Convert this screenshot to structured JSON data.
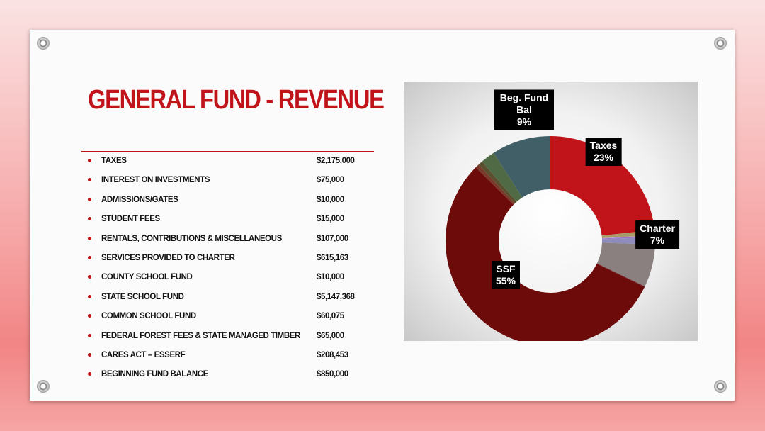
{
  "title": "GENERAL FUND - REVENUE",
  "items": [
    {
      "label": "TAXES",
      "amount": "$2,175,000"
    },
    {
      "label": "INTEREST ON INVESTMENTS",
      "amount": "$75,000"
    },
    {
      "label": "ADMISSIONS/GATES",
      "amount": "$10,000"
    },
    {
      "label": "STUDENT FEES",
      "amount": "$15,000"
    },
    {
      "label": "RENTALS, CONTRIBUTIONS & MISCELLANEOUS",
      "amount": "$107,000"
    },
    {
      "label": "SERVICES PROVIDED TO CHARTER",
      "amount": "$615,163"
    },
    {
      "label": "COUNTY SCHOOL FUND",
      "amount": "$10,000"
    },
    {
      "label": "STATE SCHOOL FUND",
      "amount": "$5,147,368"
    },
    {
      "label": "COMMON SCHOOL FUND",
      "amount": "$60,075"
    },
    {
      "label": "FEDERAL FOREST FEES & STATE MANAGED TIMBER",
      "amount": "$65,000"
    },
    {
      "label": "CARES ACT – ESSERF",
      "amount": "$208,453"
    },
    {
      "label": "BEGINNING FUND BALANCE",
      "amount": "$850,000"
    }
  ],
  "chart_data": {
    "type": "donut",
    "categories": [
      "Taxes",
      null,
      null,
      null,
      null,
      "Charter",
      null,
      "SSF",
      null,
      null,
      null,
      "Beg. Fund Bal"
    ],
    "values": [
      23.3,
      0.8,
      0.1,
      0.2,
      1.1,
      6.6,
      0.1,
      55.1,
      0.6,
      0.7,
      2.2,
      9.1
    ],
    "value_labels": [
      "23%",
      null,
      null,
      null,
      null,
      "7%",
      null,
      "55%",
      null,
      null,
      null,
      "9%"
    ],
    "colors": [
      "#c0141a",
      "#a89a6a",
      "#b9a6d6",
      "#9b6fc4",
      "#8f8bbd",
      "#8a8080",
      "#6a1010",
      "#6d0b0b",
      "#7a3a2a",
      "#5a5030",
      "#4f6a45",
      "#415f66"
    ]
  }
}
